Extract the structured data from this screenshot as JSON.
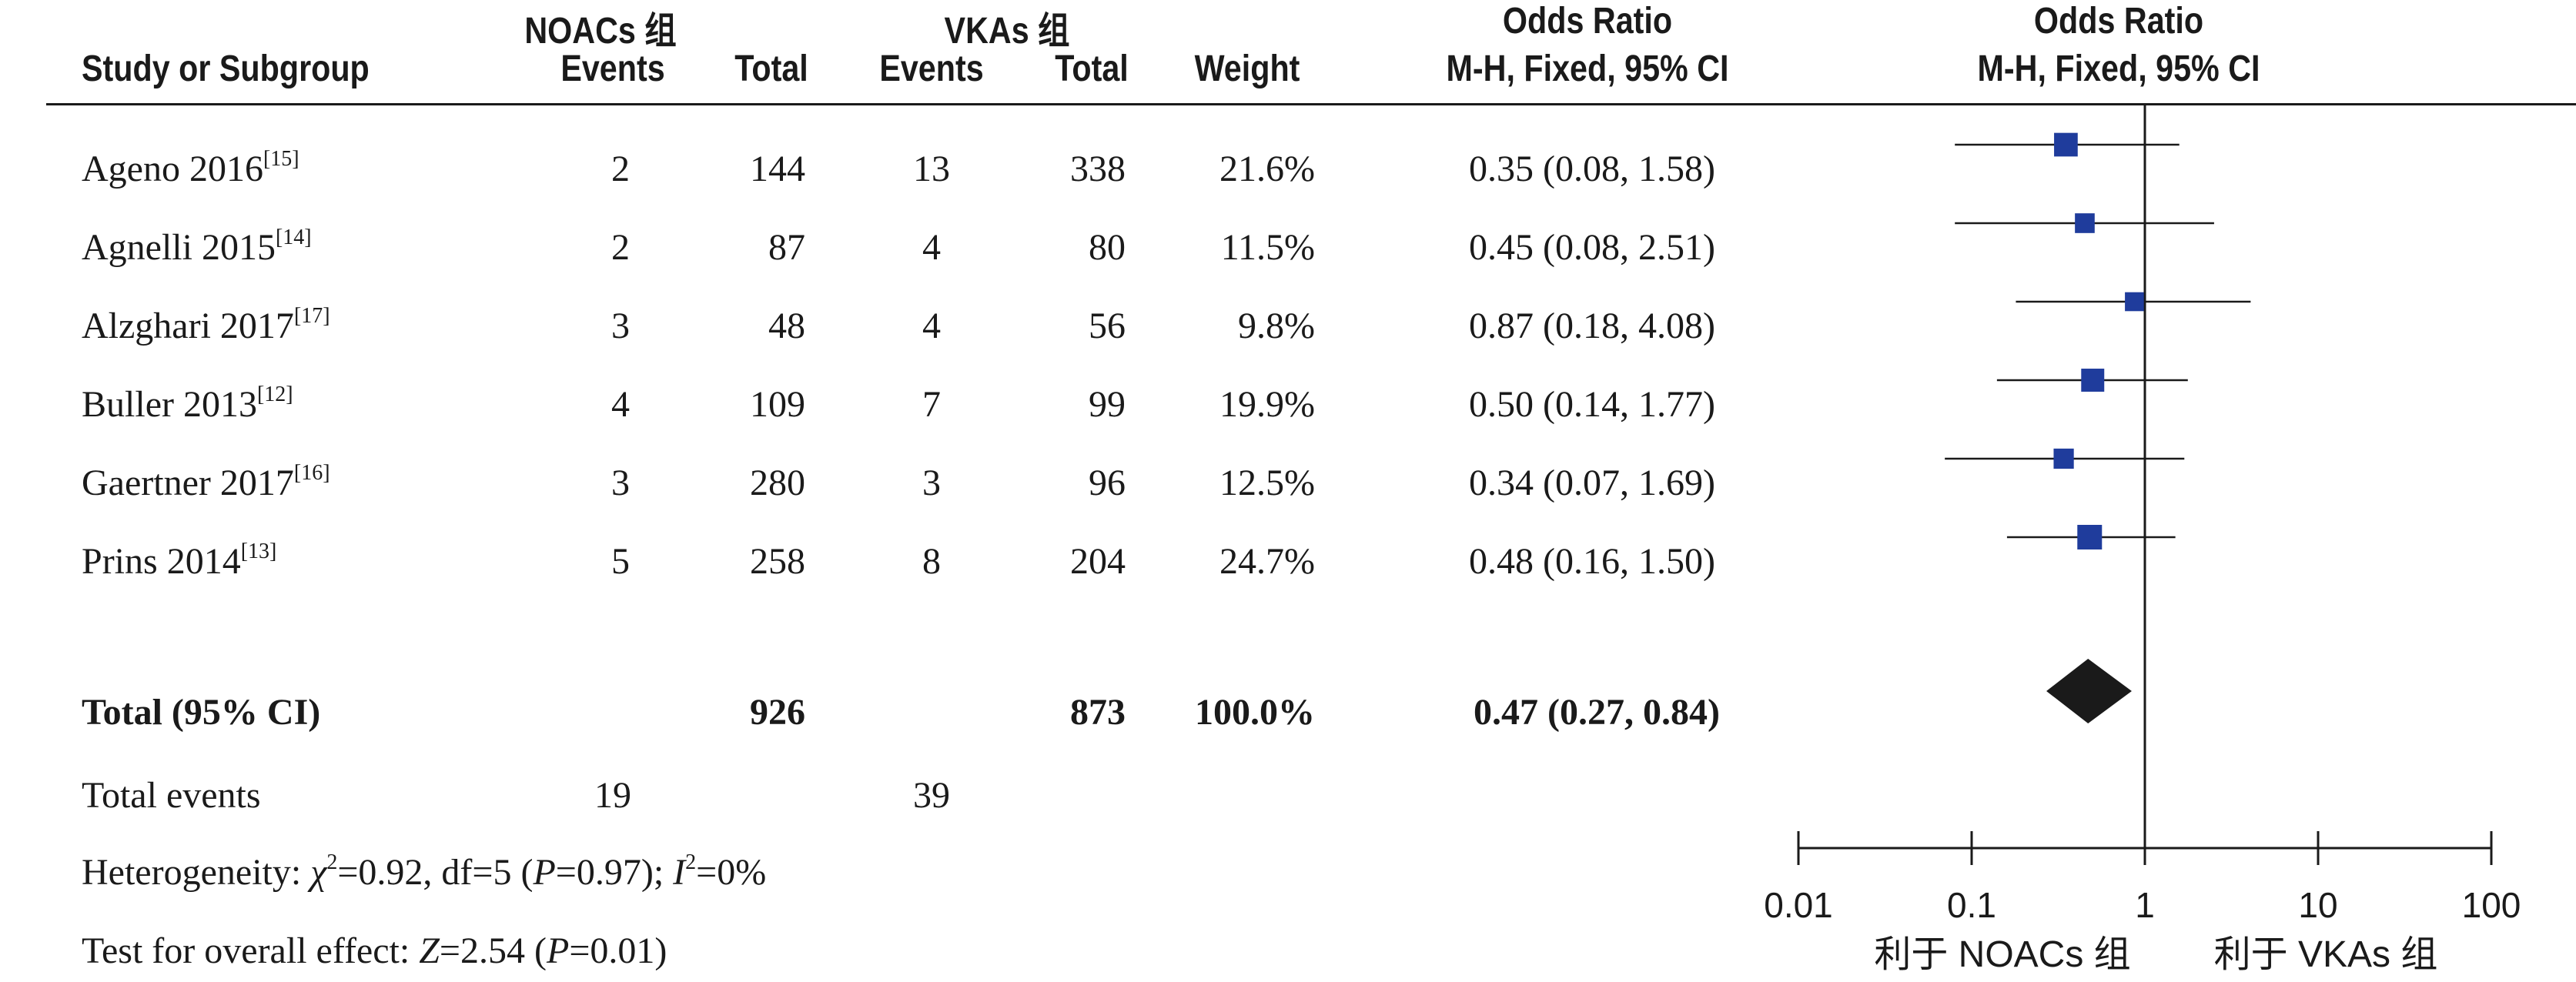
{
  "headers": {
    "study": "Study or Subgroup",
    "noacs_group": "NOACs 组",
    "vkas_group": "VKAs 组",
    "events": "Events",
    "total": "Total",
    "weight": "Weight",
    "or_table_title": "Odds Ratio",
    "or_table_method": "M-H, Fixed, 95% CI",
    "or_plot_title": "Odds Ratio",
    "or_plot_method": "M-H, Fixed, 95% CI"
  },
  "studies": [
    {
      "name": "Ageno 2016",
      "ref": "[15]",
      "noac_events": "2",
      "noac_total": "144",
      "vka_events": "13",
      "vka_total": "338",
      "weight": "21.6%",
      "or_text": "0.35 (0.08, 1.58)"
    },
    {
      "name": "Agnelli 2015",
      "ref": "[14]",
      "noac_events": "2",
      "noac_total": "87",
      "vka_events": "4",
      "vka_total": "80",
      "weight": "11.5%",
      "or_text": "0.45 (0.08, 2.51)"
    },
    {
      "name": "Alzghari 2017",
      "ref": "[17]",
      "noac_events": "3",
      "noac_total": "48",
      "vka_events": "4",
      "vka_total": "56",
      "weight": "9.8%",
      "or_text": "0.87 (0.18, 4.08)"
    },
    {
      "name": "Buller 2013",
      "ref": "[12]",
      "noac_events": "4",
      "noac_total": "109",
      "vka_events": "7",
      "vka_total": "99",
      "weight": "19.9%",
      "or_text": "0.50 (0.14, 1.77)"
    },
    {
      "name": "Gaertner 2017",
      "ref": "[16]",
      "noac_events": "3",
      "noac_total": "280",
      "vka_events": "3",
      "vka_total": "96",
      "weight": "12.5%",
      "or_text": "0.34 (0.07, 1.69)"
    },
    {
      "name": "Prins 2014",
      "ref": "[13]",
      "noac_events": "5",
      "noac_total": "258",
      "vka_events": "8",
      "vka_total": "204",
      "weight": "24.7%",
      "or_text": "0.48 (0.16, 1.50)"
    }
  ],
  "total_row": {
    "label": "Total (95% CI)",
    "noac_total": "926",
    "vka_total": "873",
    "weight": "100.0%",
    "or_text": "0.47 (0.27, 0.84)"
  },
  "total_events": {
    "label": "Total events",
    "noac": "19",
    "vka": "39"
  },
  "heterogeneity": {
    "prefix": "Heterogeneity: ",
    "chi_symbol": "χ",
    "sup2": "2",
    "chi_rest": "=0.92, df=5 (",
    "p_symbol": "P",
    "p_rest": "=0.97); ",
    "i_symbol": "I",
    "i_sup": "2",
    "i_rest": "=0%"
  },
  "overall": {
    "prefix": "Test for overall effect: ",
    "z_symbol": "Z",
    "z_rest": "=2.54 (",
    "p_symbol": "P",
    "p_rest": "=0.01)"
  },
  "favours": {
    "left": "利于 NOACs 组",
    "right": "利于 VKAs 组"
  },
  "chart_data": {
    "type": "scatter",
    "subtype": "forest",
    "x_scale": "log",
    "xlim": [
      0.01,
      100
    ],
    "x_ticks": [
      0.01,
      0.1,
      1,
      10,
      100
    ],
    "x_tick_labels": [
      "0.01",
      "0.1",
      "1",
      "10",
      "100"
    ],
    "reference_line": 1,
    "colors": {
      "square": "#1f3c9c",
      "diamond": "#1a1a1a",
      "line": "#1a1a1a"
    },
    "studies": [
      {
        "name": "Ageno 2016",
        "or": 0.35,
        "lower": 0.08,
        "upper": 1.58,
        "weight": 21.6
      },
      {
        "name": "Agnelli 2015",
        "or": 0.45,
        "lower": 0.08,
        "upper": 2.51,
        "weight": 11.5
      },
      {
        "name": "Alzghari 2017",
        "or": 0.87,
        "lower": 0.18,
        "upper": 4.08,
        "weight": 9.8
      },
      {
        "name": "Buller 2013",
        "or": 0.5,
        "lower": 0.14,
        "upper": 1.77,
        "weight": 19.9
      },
      {
        "name": "Gaertner 2017",
        "or": 0.34,
        "lower": 0.07,
        "upper": 1.69,
        "weight": 12.5
      },
      {
        "name": "Prins 2014",
        "or": 0.48,
        "lower": 0.16,
        "upper": 1.5,
        "weight": 24.7
      }
    ],
    "pooled": {
      "or": 0.47,
      "lower": 0.27,
      "upper": 0.84
    }
  }
}
